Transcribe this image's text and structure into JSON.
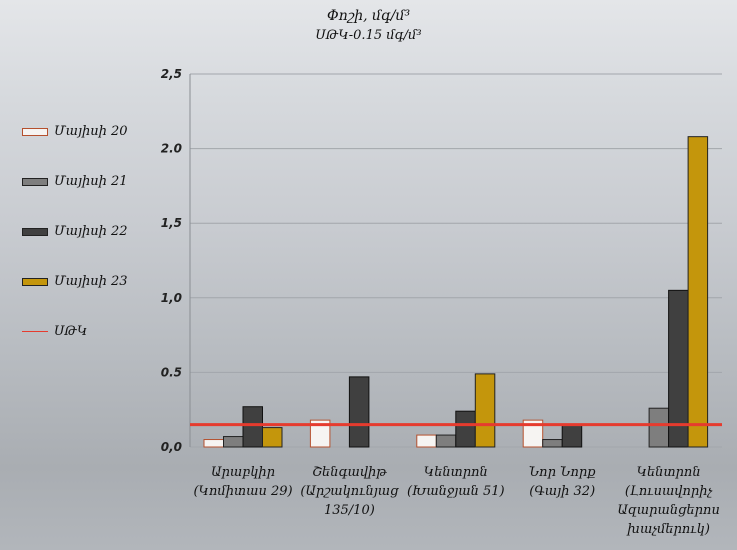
{
  "chart_data": {
    "type": "bar",
    "title": "Փոշի, մգ/մ³",
    "subtitle": "ՍԹԿ-0.15 մգ/մ³",
    "categories": [
      [
        "Արաբկիր",
        "(Կոմիտաս 29)"
      ],
      [
        "Շենգավիթ",
        "(Արշակունյաց",
        "135/10)"
      ],
      [
        "Կենտրոն",
        "(Խանջյան 51)"
      ],
      [
        "Նոր Նորք",
        "(Գայի 32)"
      ],
      [
        "Կենտրոն",
        "(Լուսավորիչ",
        "Ազարանցերոս",
        "խաչմերուկ)"
      ]
    ],
    "series": [
      {
        "name": "Մայիսի 20",
        "color": "#f6f4f2",
        "stroke": "#b5502e",
        "values": [
          0.05,
          0.18,
          0.08,
          0.18,
          null
        ]
      },
      {
        "name": "Մայիսի 21",
        "color": "#7e7e7e",
        "stroke": "#222222",
        "values": [
          0.07,
          null,
          0.08,
          0.05,
          0.26
        ]
      },
      {
        "name": "Մայիսի 22",
        "color": "#404040",
        "stroke": "#111111",
        "values": [
          0.27,
          0.47,
          0.24,
          0.15,
          1.05
        ]
      },
      {
        "name": "Մայիսի 23",
        "color": "#c4960c",
        "stroke": "#222222",
        "values": [
          0.13,
          null,
          0.49,
          null,
          2.08
        ]
      }
    ],
    "threshold": {
      "name": "ՍԹԿ",
      "value": 0.15,
      "color": "#e63b2e"
    },
    "y_ticks": [
      "2,5",
      "2.0",
      "1,5",
      "1,0",
      "0.5",
      "0,0"
    ],
    "y_tick_values": [
      2.5,
      2.0,
      1.5,
      1.0,
      0.5,
      0.0
    ],
    "ylim": [
      0,
      2.5
    ],
    "grid": true,
    "legend_position": "left"
  }
}
